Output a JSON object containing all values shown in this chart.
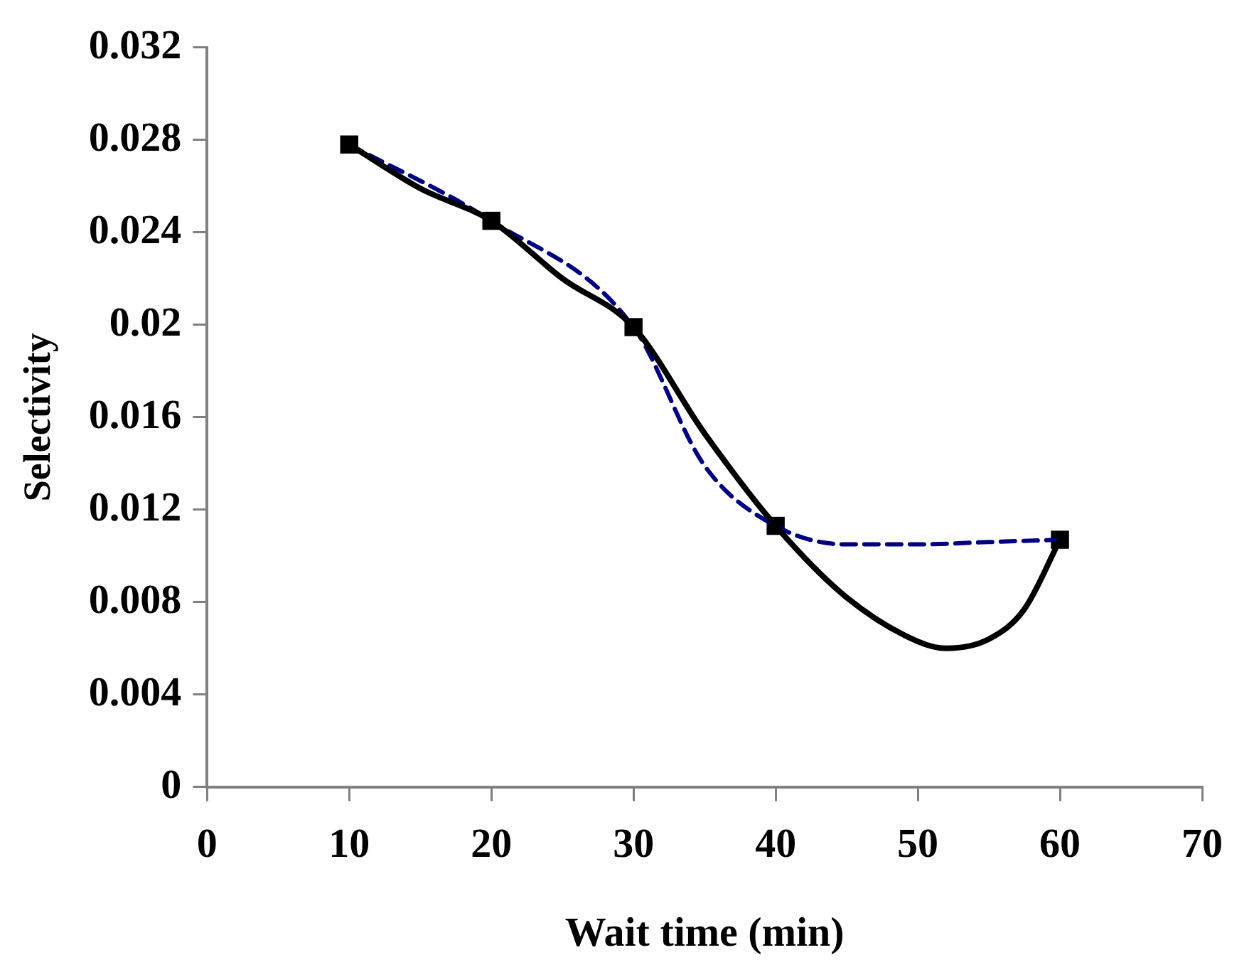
{
  "chart_data": {
    "type": "line",
    "xlabel": "Wait time (min)",
    "ylabel": "Selectivity",
    "series": [
      {
        "color": "#000000",
        "line_style": "solid",
        "marker": "none",
        "x": [
          10,
          15,
          20,
          25,
          30,
          35,
          40,
          45,
          50,
          52,
          55,
          57.5,
          60
        ],
        "values": [
          0.0278,
          0.0259,
          0.0245,
          0.022,
          0.0199,
          0.0153,
          0.0113,
          0.0082,
          0.0063,
          0.006,
          0.0064,
          0.0077,
          0.0107
        ]
      },
      {
        "color": "#000080",
        "line_style": "dashed",
        "marker": "none",
        "x": [
          10,
          20,
          30,
          35,
          40,
          45,
          50,
          55,
          60
        ],
        "values": [
          0.0278,
          0.0245,
          0.0199,
          0.0139,
          0.0113,
          0.0105,
          0.0105,
          0.0106,
          0.0107
        ]
      },
      {
        "type": "scatter",
        "color": "#000000",
        "marker": "square",
        "x": [
          10,
          20,
          30,
          40,
          60
        ],
        "values": [
          0.0278,
          0.0245,
          0.0199,
          0.0113,
          0.0107
        ]
      }
    ],
    "xlim": [
      0,
      70
    ],
    "xticks": [
      0,
      10,
      20,
      30,
      40,
      50,
      60,
      70
    ],
    "ylim": [
      0,
      0.032
    ],
    "yticks": [
      0,
      0.004,
      0.008,
      0.012,
      0.016,
      0.02,
      0.024,
      0.028,
      0.032
    ],
    "grid": false,
    "legend": false
  }
}
